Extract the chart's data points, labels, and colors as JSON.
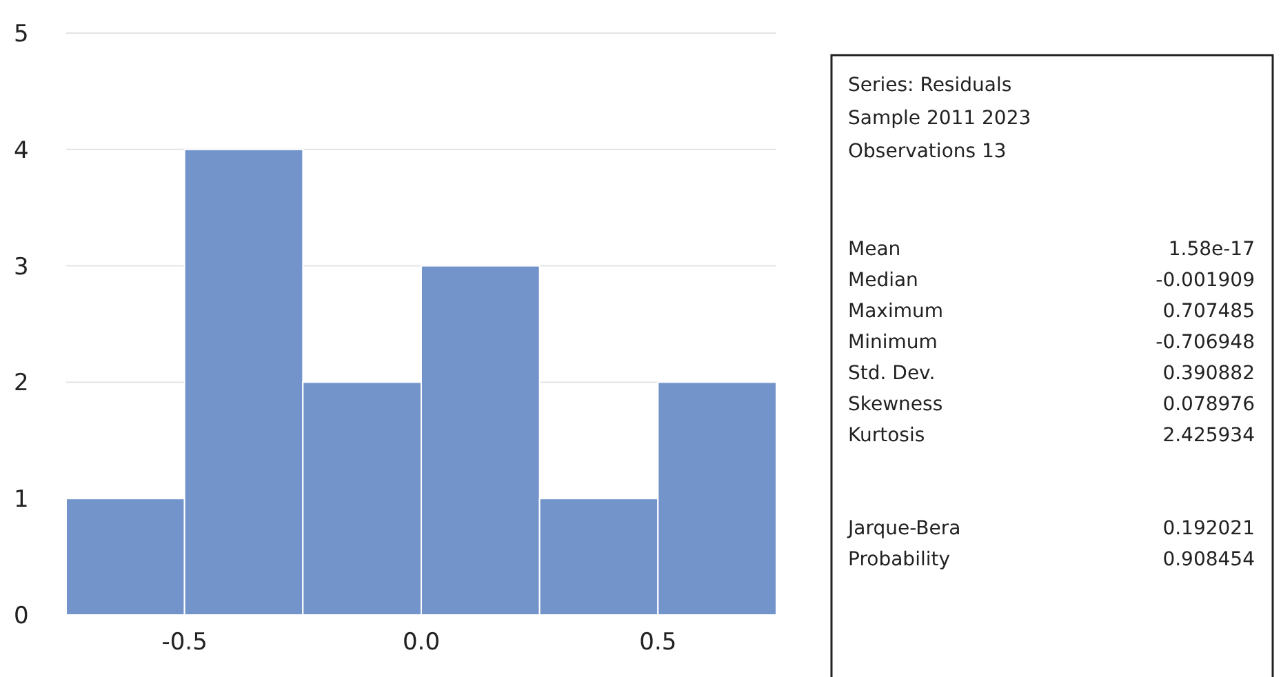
{
  "chart_data": {
    "type": "histogram",
    "bins": [
      -0.75,
      -0.5,
      -0.25,
      0,
      0.25,
      0.5,
      0.75
    ],
    "values": [
      1,
      4,
      2,
      3,
      1,
      2
    ],
    "color": "#7294cb",
    "xlim": [
      -0.75,
      0.75
    ],
    "xticks": [
      -0.5,
      {
        "value": 0,
        "label": "0.0"
      },
      0.5
    ],
    "ylim": [
      0,
      5
    ],
    "yticks": [
      0,
      1,
      2,
      3,
      4,
      5
    ],
    "grid": "y",
    "annotations": [
      "Series: Residuals",
      "Sample 2011 2023",
      "Observations 13",
      "Mean",
      "1.58e-17",
      "Median",
      "-0.001909",
      "Maximum",
      "0.707485",
      "Minimum",
      "-0.706948",
      "Std. Dev.",
      "0.390882",
      "Skewness",
      "0.078976",
      "Kurtosis",
      "2.425934",
      "Jarque-Bera",
      "0.192021",
      "Probability",
      "0.908454"
    ]
  }
}
